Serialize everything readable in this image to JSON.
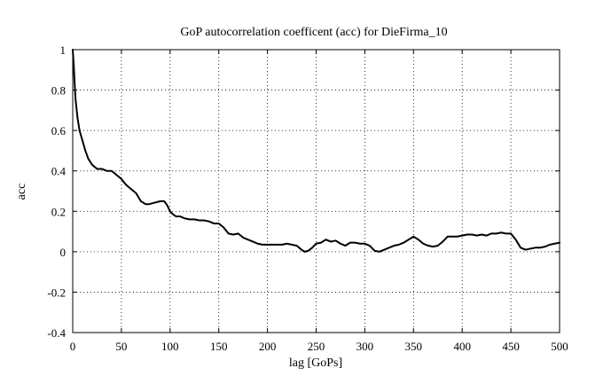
{
  "chart_data": {
    "type": "line",
    "title": "GoP autocorrelation coefficent (acc) for DieFirma_10",
    "xlabel": "lag [GoPs]",
    "ylabel": "acc",
    "xlim": [
      0,
      500
    ],
    "ylim": [
      -0.4,
      1
    ],
    "xticks": [
      0,
      50,
      100,
      150,
      200,
      250,
      300,
      350,
      400,
      450,
      500
    ],
    "yticks": [
      -0.4,
      -0.2,
      0,
      0.2,
      0.4,
      0.6,
      0.8,
      1
    ],
    "xtick_labels": [
      "0",
      "50",
      "100",
      "150",
      "200",
      "250",
      "300",
      "350",
      "400",
      "450",
      "500"
    ],
    "ytick_labels": [
      "-0.4",
      "-0.2",
      "0",
      "0.2",
      "0.4",
      "0.6",
      "0.8",
      "1"
    ],
    "grid": true,
    "series": [
      {
        "color": "#000000",
        "x": [
          0,
          1,
          2,
          3,
          5,
          7,
          10,
          13,
          16,
          20,
          25,
          30,
          35,
          38,
          40,
          45,
          50,
          55,
          60,
          65,
          70,
          75,
          78,
          82,
          86,
          90,
          94,
          97,
          100,
          103,
          106,
          110,
          115,
          120,
          125,
          130,
          135,
          140,
          145,
          150,
          155,
          160,
          165,
          170,
          175,
          180,
          185,
          190,
          195,
          200,
          205,
          210,
          215,
          220,
          225,
          230,
          235,
          238,
          242,
          246,
          250,
          255,
          260,
          265,
          270,
          275,
          280,
          285,
          290,
          295,
          300,
          305,
          310,
          315,
          320,
          325,
          330,
          335,
          340,
          345,
          350,
          355,
          360,
          365,
          370,
          375,
          380,
          385,
          390,
          395,
          400,
          405,
          410,
          415,
          420,
          425,
          430,
          435,
          440,
          445,
          450,
          455,
          460,
          465,
          470,
          475,
          480,
          485,
          490,
          495,
          500
        ],
        "y": [
          1.0,
          0.93,
          0.83,
          0.75,
          0.66,
          0.6,
          0.55,
          0.5,
          0.46,
          0.43,
          0.41,
          0.41,
          0.4,
          0.4,
          0.4,
          0.38,
          0.36,
          0.33,
          0.31,
          0.29,
          0.25,
          0.235,
          0.235,
          0.24,
          0.245,
          0.25,
          0.25,
          0.23,
          0.2,
          0.185,
          0.175,
          0.175,
          0.165,
          0.16,
          0.16,
          0.155,
          0.155,
          0.15,
          0.14,
          0.14,
          0.12,
          0.09,
          0.085,
          0.09,
          0.07,
          0.06,
          0.05,
          0.04,
          0.035,
          0.035,
          0.035,
          0.035,
          0.035,
          0.04,
          0.035,
          0.03,
          0.01,
          0.0,
          0.005,
          0.02,
          0.04,
          0.045,
          0.06,
          0.05,
          0.055,
          0.04,
          0.03,
          0.045,
          0.045,
          0.04,
          0.04,
          0.03,
          0.005,
          0.0,
          0.01,
          0.02,
          0.03,
          0.035,
          0.045,
          0.06,
          0.075,
          0.06,
          0.04,
          0.03,
          0.025,
          0.03,
          0.05,
          0.075,
          0.075,
          0.075,
          0.08,
          0.085,
          0.085,
          0.08,
          0.085,
          0.08,
          0.09,
          0.09,
          0.095,
          0.09,
          0.09,
          0.06,
          0.02,
          0.01,
          0.015,
          0.02,
          0.02,
          0.025,
          0.035,
          0.04,
          0.045
        ]
      }
    ]
  }
}
